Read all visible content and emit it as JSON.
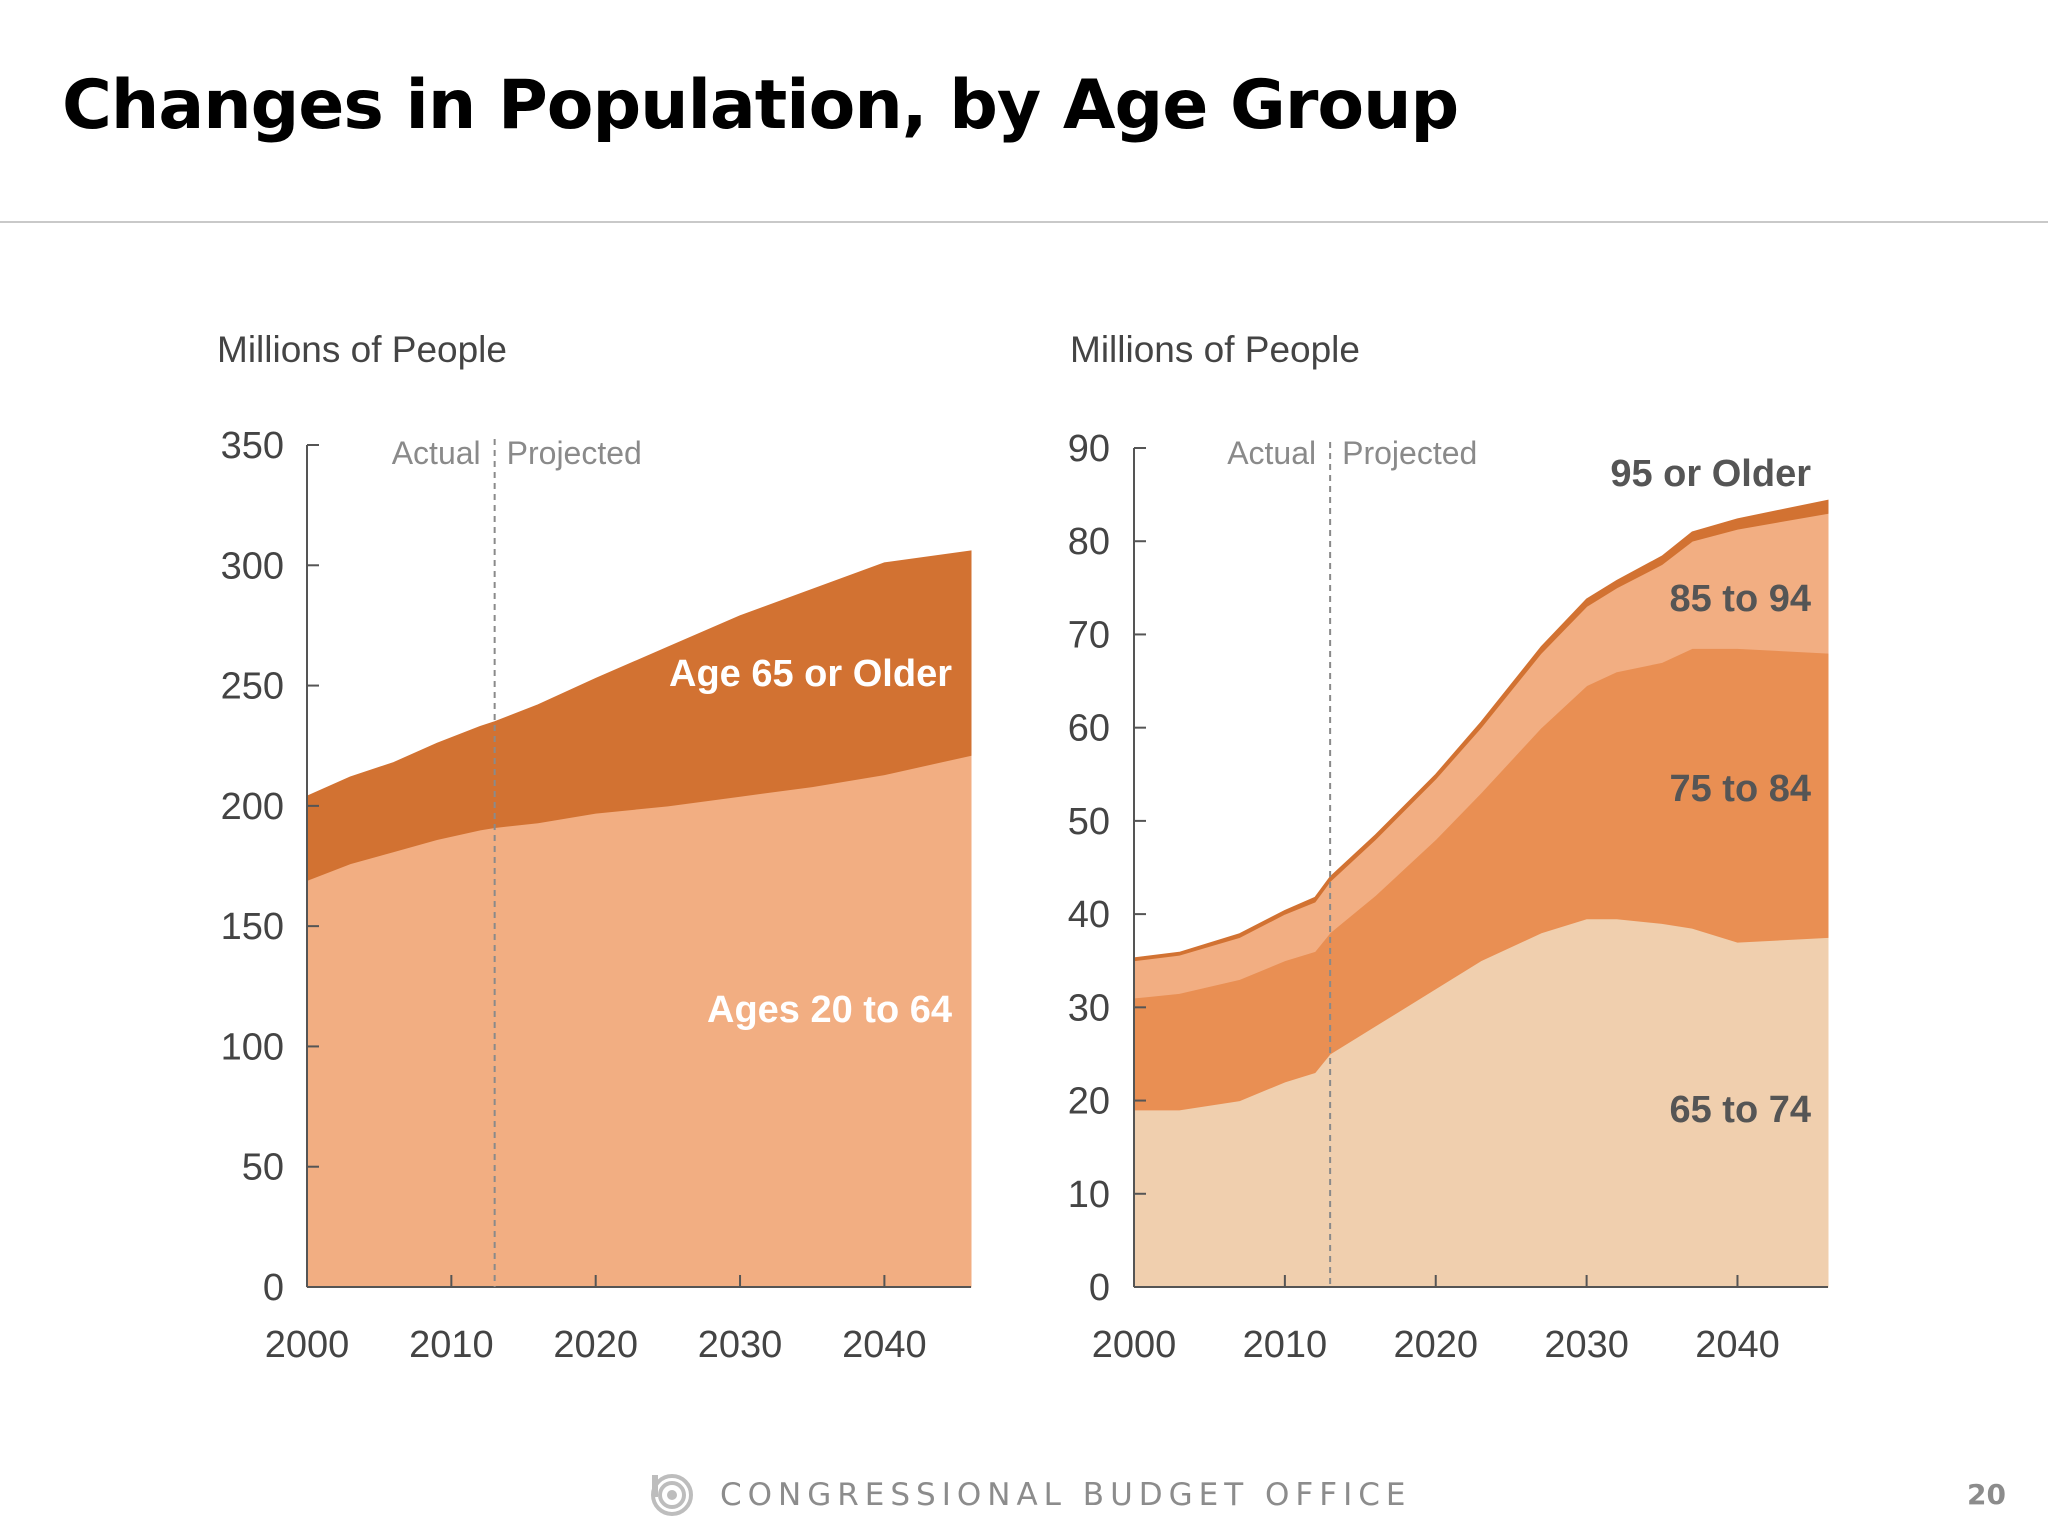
{
  "slide": {
    "title": "Changes in Population, by Age Group",
    "footer": "CONGRESSIONAL BUDGET OFFICE",
    "page_number": "20",
    "logo_icon": "cbo-logo-icon"
  },
  "colors": {
    "ages_20_to_64": "#f2ae82",
    "age_65_or_older": "#d27232",
    "age_65_to_74": "#f0cfae",
    "age_75_to_84": "#e98f53",
    "age_85_to_94": "#f2ae82",
    "age_95_or_older": "#d27232",
    "axis": "#555555",
    "divider": "#8a8a8a"
  },
  "chart_data": [
    {
      "type": "area",
      "stacked": true,
      "ylabel": "Millions of People",
      "xlim": [
        2000,
        2046
      ],
      "ylim": [
        0,
        350
      ],
      "xticks": [
        "2000",
        "2010",
        "2020",
        "2030",
        "2040"
      ],
      "yticks": [
        "0",
        "50",
        "100",
        "150",
        "200",
        "250",
        "300",
        "350"
      ],
      "divider": {
        "x": 2013,
        "left_label": "Actual",
        "right_label": "Projected"
      },
      "x": [
        2000,
        2003,
        2006,
        2009,
        2012,
        2013,
        2016,
        2020,
        2025,
        2030,
        2035,
        2040,
        2046
      ],
      "series": [
        {
          "name": "Ages 20 to 64",
          "color_key": "ages_20_to_64",
          "label_color": "#ffffff",
          "values": [
            169,
            176,
            181,
            186,
            190,
            191,
            193,
            197,
            200,
            204,
            208,
            213,
            221
          ]
        },
        {
          "name": "Age 65 or Older",
          "color_key": "age_65_or_older",
          "label_color": "#ffffff",
          "values": [
            35,
            36,
            37,
            40,
            43,
            44,
            49,
            56,
            66,
            75,
            82,
            88,
            85
          ]
        }
      ]
    },
    {
      "type": "area",
      "stacked": true,
      "ylabel": "Millions of People",
      "xlim": [
        2000,
        2046
      ],
      "ylim": [
        0,
        90
      ],
      "xticks": [
        "2000",
        "2010",
        "2020",
        "2030",
        "2040"
      ],
      "yticks": [
        "0",
        "10",
        "20",
        "30",
        "40",
        "50",
        "60",
        "70",
        "80",
        "90"
      ],
      "divider": {
        "x": 2013,
        "left_label": "Actual",
        "right_label": "Projected"
      },
      "x": [
        2000,
        2003,
        2007,
        2010,
        2012,
        2013,
        2016,
        2020,
        2023,
        2027,
        2030,
        2032,
        2035,
        2037,
        2040,
        2046
      ],
      "series": [
        {
          "name": "65 to 74",
          "color_key": "age_65_to_74",
          "label_color": "#555555",
          "values": [
            19,
            19,
            20,
            22,
            23,
            25,
            28,
            32,
            35,
            38,
            39.5,
            39.5,
            39,
            38.5,
            37,
            37.5
          ]
        },
        {
          "name": "75 to 84",
          "color_key": "age_75_to_84",
          "label_color": "#555555",
          "values": [
            12,
            12.5,
            13,
            13,
            13,
            13,
            14,
            16,
            18,
            22,
            25,
            26.5,
            28,
            30,
            31.5,
            30.5
          ]
        },
        {
          "name": "85 to 94",
          "color_key": "age_85_to_94",
          "label_color": "#555555",
          "values": [
            4,
            4.1,
            4.5,
            5,
            5.3,
            5.5,
            6,
            6.5,
            7,
            8,
            8.5,
            9,
            10.5,
            11.5,
            12.8,
            15
          ]
        },
        {
          "name": "95 or Older",
          "color_key": "age_95_or_older",
          "label_color": "#555555",
          "values": [
            0.3,
            0.3,
            0.4,
            0.4,
            0.5,
            0.5,
            0.5,
            0.5,
            0.6,
            0.7,
            0.8,
            0.8,
            0.9,
            1.0,
            1.1,
            1.4
          ]
        }
      ]
    }
  ]
}
